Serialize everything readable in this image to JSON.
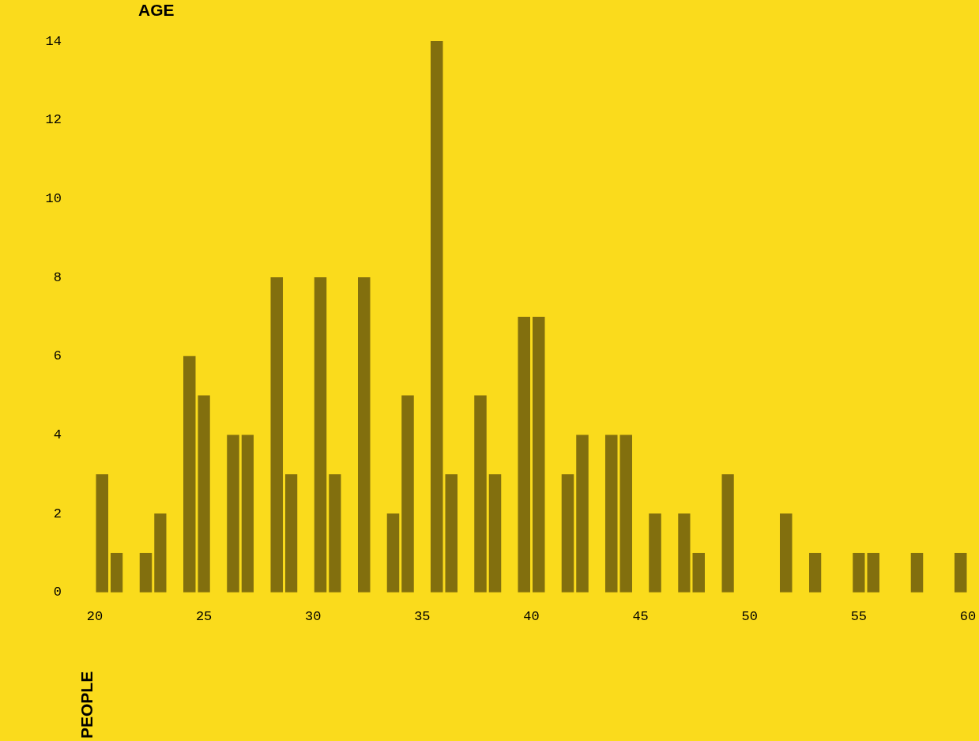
{
  "chart_data": {
    "type": "histogram",
    "xlabel": "AGE",
    "ylabel": "PEOPLE",
    "bins": [
      20,
      20.67,
      21.33,
      22,
      22.67,
      23.33,
      24,
      24.67,
      25.33,
      26,
      26.67,
      27.33,
      28,
      28.67,
      29.33,
      30,
      30.67,
      31.33,
      32,
      32.67,
      33.33,
      34,
      34.67,
      35.33,
      36,
      36.67,
      37.33,
      38,
      38.67,
      39.33,
      40,
      40.67,
      41.33,
      42,
      42.67,
      43.33,
      44,
      44.67,
      45.33,
      46,
      46.67,
      47.33,
      48,
      48.67,
      49.33,
      50,
      50.67,
      51.33,
      52,
      52.67,
      53.33,
      54,
      54.67,
      55.33,
      56,
      56.67,
      57.33,
      58,
      58.67,
      59.33,
      60
    ],
    "values": [
      3,
      1,
      0,
      1,
      2,
      0,
      6,
      5,
      0,
      4,
      4,
      0,
      8,
      3,
      0,
      8,
      3,
      0,
      8,
      0,
      2,
      5,
      0,
      14,
      3,
      0,
      5,
      3,
      0,
      7,
      7,
      0,
      3,
      4,
      0,
      4,
      4,
      0,
      2,
      0,
      2,
      1,
      0,
      3,
      0,
      0,
      0,
      2,
      0,
      1,
      0,
      0,
      1,
      1,
      0,
      0,
      1,
      0,
      0,
      1
    ],
    "color": "#826f0e",
    "xlim": [
      20,
      60
    ],
    "xticks": [
      20,
      25,
      30,
      35,
      40,
      45,
      50,
      55,
      60
    ],
    "ylim": [
      0,
      14
    ],
    "yticks": [
      0,
      2,
      4,
      6,
      8,
      10,
      12,
      14
    ],
    "grid": false
  }
}
